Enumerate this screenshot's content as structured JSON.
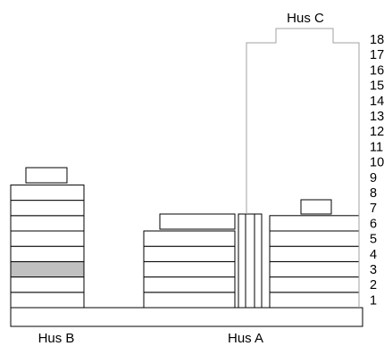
{
  "labels": {
    "hus_c": "Hus C",
    "hus_b": "Hus B",
    "hus_a": "Hus A"
  },
  "floor_numbers": [
    "1",
    "2",
    "3",
    "4",
    "5",
    "6",
    "7",
    "8",
    "9",
    "10",
    "11",
    "12",
    "13",
    "14",
    "15",
    "16",
    "17",
    "18"
  ],
  "highlighted_floor_hus_b": 3,
  "colors": {
    "outline": "#000000",
    "highlight": "#c0c0c0",
    "hus_c_outline": "#a0a0a0",
    "background": "#ffffff"
  }
}
